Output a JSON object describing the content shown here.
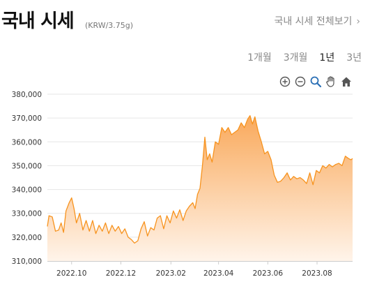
{
  "header": {
    "title": "국내 시세",
    "subtitle": "(KRW/3.75g)",
    "view_all": "국내 시세 전체보기",
    "view_all_icon": "chevron-right-icon"
  },
  "periods": [
    {
      "label": "1개월",
      "active": false
    },
    {
      "label": "3개월",
      "active": false
    },
    {
      "label": "1년",
      "active": true
    },
    {
      "label": "3년",
      "active": false
    }
  ],
  "toolbar": {
    "icons": [
      "zoom-in-icon",
      "zoom-out-icon",
      "magnify-icon",
      "pan-hand-icon",
      "home-icon"
    ]
  },
  "colors": {
    "line": "#F7931E",
    "area_top": "#F9A95B",
    "area_bottom": "#FFF4EA",
    "grid": "#E6E6E6"
  },
  "chart_data": {
    "type": "area",
    "xlabel": "",
    "ylabel": "",
    "ylim": [
      310000,
      380000
    ],
    "yticks": [
      "310,000",
      "320,000",
      "330,000",
      "340,000",
      "350,000",
      "360,000",
      "370,000",
      "380,000"
    ],
    "ytick_values": [
      310000,
      320000,
      330000,
      340000,
      350000,
      360000,
      370000,
      380000
    ],
    "xticks": [
      "2022.10",
      "2022.12",
      "2023.02",
      "2023.04",
      "2023.06",
      "2023.08"
    ],
    "xtick_dates": [
      "2022-10-01",
      "2022-12-01",
      "2023-02-01",
      "2023-04-01",
      "2023-06-01",
      "2023-08-01"
    ],
    "xlim": [
      "2022-09-01",
      "2023-09-14"
    ],
    "grid": true,
    "series": [
      {
        "x": [
          "2022-09-01",
          "2022-09-03",
          "2022-09-07",
          "2022-09-11",
          "2022-09-15",
          "2022-09-18",
          "2022-09-21",
          "2022-09-24",
          "2022-09-28",
          "2022-10-01",
          "2022-10-04",
          "2022-10-07",
          "2022-10-11",
          "2022-10-15",
          "2022-10-19",
          "2022-10-23",
          "2022-10-27",
          "2022-10-31",
          "2022-11-04",
          "2022-11-08",
          "2022-11-12",
          "2022-11-16",
          "2022-11-20",
          "2022-11-24",
          "2022-11-28",
          "2022-12-02",
          "2022-12-06",
          "2022-12-10",
          "2022-12-14",
          "2022-12-18",
          "2022-12-22",
          "2022-12-26",
          "2022-12-30",
          "2023-01-03",
          "2023-01-07",
          "2023-01-11",
          "2023-01-15",
          "2023-01-19",
          "2023-01-23",
          "2023-01-27",
          "2023-01-31",
          "2023-02-04",
          "2023-02-08",
          "2023-02-12",
          "2023-02-16",
          "2023-02-20",
          "2023-02-24",
          "2023-02-28",
          "2023-03-03",
          "2023-03-06",
          "2023-03-09",
          "2023-03-12",
          "2023-03-15",
          "2023-03-18",
          "2023-03-21",
          "2023-03-24",
          "2023-03-28",
          "2023-04-01",
          "2023-04-05",
          "2023-04-09",
          "2023-04-13",
          "2023-04-17",
          "2023-04-21",
          "2023-04-25",
          "2023-04-29",
          "2023-05-03",
          "2023-05-07",
          "2023-05-10",
          "2023-05-13",
          "2023-05-16",
          "2023-05-20",
          "2023-05-24",
          "2023-05-28",
          "2023-06-01",
          "2023-06-05",
          "2023-06-09",
          "2023-06-13",
          "2023-06-17",
          "2023-06-21",
          "2023-06-25",
          "2023-06-29",
          "2023-07-03",
          "2023-07-07",
          "2023-07-11",
          "2023-07-15",
          "2023-07-19",
          "2023-07-23",
          "2023-07-27",
          "2023-07-31",
          "2023-08-04",
          "2023-08-08",
          "2023-08-12",
          "2023-08-16",
          "2023-08-20",
          "2023-08-24",
          "2023-08-28",
          "2023-09-01",
          "2023-09-05",
          "2023-09-09",
          "2023-09-12",
          "2023-09-14"
        ],
        "values": [
          324500,
          329000,
          328500,
          322500,
          323000,
          326000,
          322000,
          331000,
          334500,
          336500,
          332000,
          326000,
          330000,
          323000,
          327000,
          322500,
          327000,
          321500,
          325000,
          322500,
          326000,
          321500,
          325000,
          322500,
          324500,
          321500,
          323500,
          320000,
          319000,
          317500,
          318500,
          323500,
          326500,
          320500,
          324000,
          323000,
          328000,
          329000,
          323500,
          329000,
          326000,
          331000,
          328000,
          331500,
          327000,
          331000,
          333000,
          334500,
          332000,
          338000,
          340500,
          350000,
          362000,
          352500,
          355000,
          351500,
          360000,
          359000,
          366000,
          364000,
          366000,
          363000,
          364000,
          365000,
          368000,
          366000,
          369500,
          371000,
          367500,
          370500,
          364500,
          360000,
          355000,
          356000,
          352500,
          346000,
          343000,
          343500,
          345000,
          347000,
          344000,
          345500,
          344500,
          345000,
          344000,
          342500,
          347000,
          342000,
          348000,
          347000,
          350000,
          349000,
          350500,
          349500,
          350500,
          351000,
          350000,
          354000,
          353000,
          352500,
          353000
        ]
      }
    ]
  }
}
